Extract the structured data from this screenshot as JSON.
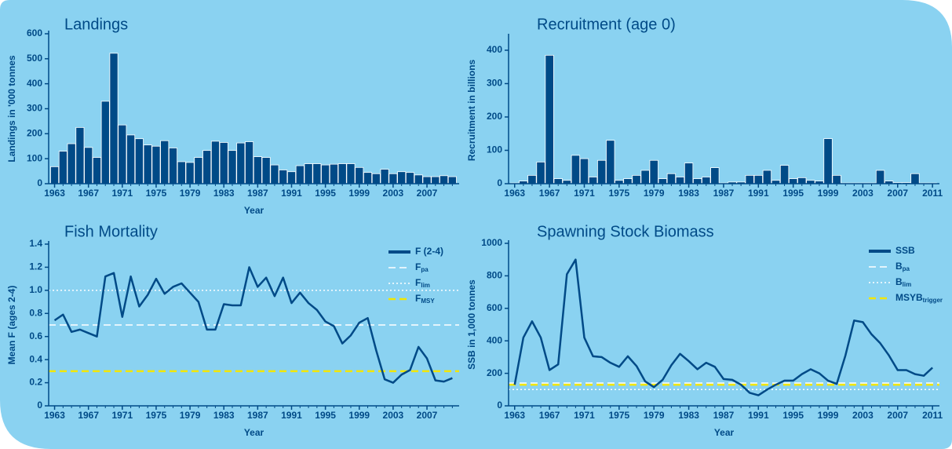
{
  "chart_data": [
    {
      "type": "bar",
      "title": "Landings",
      "x_label": "Year",
      "y_label": "Landings in '000 tonnes",
      "color": "#004a87",
      "x": [
        1963,
        1964,
        1965,
        1966,
        1967,
        1968,
        1969,
        1970,
        1971,
        1972,
        1973,
        1974,
        1975,
        1976,
        1977,
        1978,
        1979,
        1980,
        1981,
        1982,
        1983,
        1984,
        1985,
        1986,
        1987,
        1988,
        1989,
        1990,
        1991,
        1992,
        1993,
        1994,
        1995,
        1996,
        1997,
        1998,
        1999,
        2000,
        2001,
        2002,
        2003,
        2004,
        2005,
        2006,
        2007,
        2008,
        2009,
        2010
      ],
      "values": [
        68,
        130,
        160,
        225,
        145,
        105,
        330,
        522,
        235,
        195,
        180,
        155,
        150,
        172,
        143,
        88,
        85,
        105,
        133,
        170,
        165,
        133,
        163,
        168,
        108,
        105,
        75,
        55,
        48,
        72,
        80,
        80,
        75,
        78,
        80,
        80,
        65,
        45,
        40,
        58,
        40,
        48,
        45,
        35,
        28,
        28,
        32,
        28
      ],
      "xlim": [
        1962.3,
        2010.8
      ],
      "xticks": [
        1963,
        1967,
        1971,
        1975,
        1979,
        1983,
        1987,
        1991,
        1995,
        1999,
        2003,
        2007
      ],
      "ylim": [
        0,
        600
      ],
      "yticks": [
        0,
        100,
        200,
        300,
        400,
        500,
        600
      ]
    },
    {
      "type": "bar",
      "title": "Recruitment (age 0)",
      "y_label": "Recruitment in billions",
      "color": "#004a87",
      "x": [
        1963,
        1964,
        1965,
        1966,
        1967,
        1968,
        1969,
        1970,
        1971,
        1972,
        1973,
        1974,
        1975,
        1976,
        1977,
        1978,
        1979,
        1980,
        1981,
        1982,
        1983,
        1984,
        1985,
        1986,
        1987,
        1988,
        1989,
        1990,
        1991,
        1992,
        1993,
        1994,
        1995,
        1996,
        1997,
        1998,
        1999,
        2000,
        2001,
        2002,
        2003,
        2004,
        2005,
        2006,
        2007,
        2008,
        2009,
        2010,
        2011
      ],
      "values": [
        2,
        8,
        25,
        65,
        385,
        15,
        10,
        85,
        75,
        20,
        70,
        130,
        10,
        15,
        25,
        40,
        70,
        15,
        30,
        20,
        62,
        15,
        20,
        48,
        2,
        5,
        5,
        25,
        25,
        40,
        10,
        55,
        15,
        18,
        10,
        8,
        135,
        25,
        2,
        2,
        2,
        2,
        40,
        8,
        3,
        3,
        30,
        2,
        2
      ],
      "xlim": [
        1962.3,
        2011.8
      ],
      "xticks": [
        1963,
        1967,
        1971,
        1975,
        1979,
        1983,
        1987,
        1991,
        1995,
        1999,
        2003,
        2007,
        2011
      ],
      "ylim": [
        0,
        440
      ],
      "yticks": [
        0,
        100,
        200,
        300,
        400
      ]
    },
    {
      "type": "line",
      "title": "Fish Mortality",
      "x_label": "Year",
      "y_label": "Mean F (ages 2-4)",
      "x": [
        1963,
        1964,
        1965,
        1966,
        1967,
        1968,
        1969,
        1970,
        1971,
        1972,
        1973,
        1974,
        1975,
        1976,
        1977,
        1978,
        1979,
        1980,
        1981,
        1982,
        1983,
        1984,
        1985,
        1986,
        1987,
        1988,
        1989,
        1990,
        1991,
        1992,
        1993,
        1994,
        1995,
        1996,
        1997,
        1998,
        1999,
        2000,
        2001,
        2002,
        2003,
        2004,
        2005,
        2006,
        2007,
        2008,
        2009,
        2010
      ],
      "series": [
        {
          "name": "F (2-4)",
          "color": "#004a87",
          "values": [
            0.74,
            0.79,
            0.64,
            0.66,
            0.63,
            0.6,
            1.12,
            1.15,
            0.77,
            1.12,
            0.86,
            0.96,
            1.1,
            0.97,
            1.03,
            1.06,
            0.98,
            0.9,
            0.66,
            0.66,
            0.88,
            0.87,
            0.87,
            1.2,
            1.03,
            1.11,
            0.95,
            1.11,
            0.89,
            0.98,
            0.89,
            0.83,
            0.73,
            0.69,
            0.54,
            0.61,
            0.72,
            0.76,
            0.48,
            0.23,
            0.2,
            0.27,
            0.31,
            0.51,
            0.41,
            0.22,
            0.21,
            0.24
          ]
        }
      ],
      "reference_lines": [
        {
          "name": "F",
          "subscript": "pa",
          "value": 0.7,
          "color": "#ffffff",
          "style": "dashed"
        },
        {
          "name": "F",
          "subscript": "lim",
          "value": 1.0,
          "color": "#ffffff",
          "style": "dotted"
        },
        {
          "name": "F",
          "subscript": "MSY",
          "value": 0.3,
          "color": "#f2e600",
          "style": "dashed"
        }
      ],
      "xlim": [
        1962.3,
        2010.8
      ],
      "xticks": [
        1963,
        1967,
        1971,
        1975,
        1979,
        1983,
        1987,
        1991,
        1995,
        1999,
        2003,
        2007
      ],
      "ylim": [
        0,
        1.4
      ],
      "yticks": [
        0,
        0.2,
        0.4,
        0.6,
        0.8,
        {
          "value": 1,
          "label": "1.0"
        },
        1.2,
        1.4
      ]
    },
    {
      "type": "line",
      "title": "Spawning Stock Biomass",
      "x_label": "Year",
      "y_label": "SSB in 1,000 tonnes",
      "x": [
        1963,
        1964,
        1965,
        1966,
        1967,
        1968,
        1969,
        1970,
        1971,
        1972,
        1973,
        1974,
        1975,
        1976,
        1977,
        1978,
        1979,
        1980,
        1981,
        1982,
        1983,
        1984,
        1985,
        1986,
        1987,
        1988,
        1989,
        1990,
        1991,
        1992,
        1993,
        1994,
        1995,
        1996,
        1997,
        1998,
        1999,
        2000,
        2001,
        2002,
        2003,
        2004,
        2005,
        2006,
        2007,
        2008,
        2009,
        2010,
        2011
      ],
      "series": [
        {
          "name": "SSB",
          "color": "#004a87",
          "values": [
            130,
            420,
            520,
            420,
            220,
            255,
            810,
            900,
            420,
            305,
            300,
            265,
            240,
            305,
            245,
            150,
            115,
            160,
            250,
            320,
            275,
            225,
            265,
            240,
            165,
            160,
            130,
            80,
            65,
            100,
            130,
            155,
            155,
            195,
            225,
            200,
            155,
            135,
            310,
            525,
            515,
            440,
            385,
            310,
            220,
            220,
            195,
            185,
            235
          ]
        }
      ],
      "reference_lines": [
        {
          "name": "B",
          "subscript": "pa",
          "value": 140,
          "color": "#ffffff",
          "style": "dashed"
        },
        {
          "name": "B",
          "subscript": "lim",
          "value": 100,
          "color": "#ffffff",
          "style": "dotted"
        },
        {
          "name": "MSYB",
          "subscript": "trigger",
          "value": 130,
          "color": "#f2e600",
          "style": "dashed"
        }
      ],
      "xlim": [
        1962.3,
        2011.8
      ],
      "xticks": [
        1963,
        1967,
        1971,
        1975,
        1979,
        1983,
        1987,
        1991,
        1995,
        1999,
        2003,
        2007,
        2011
      ],
      "ylim": [
        0,
        1000
      ],
      "yticks": [
        0,
        200,
        400,
        600,
        800,
        1000
      ]
    }
  ]
}
